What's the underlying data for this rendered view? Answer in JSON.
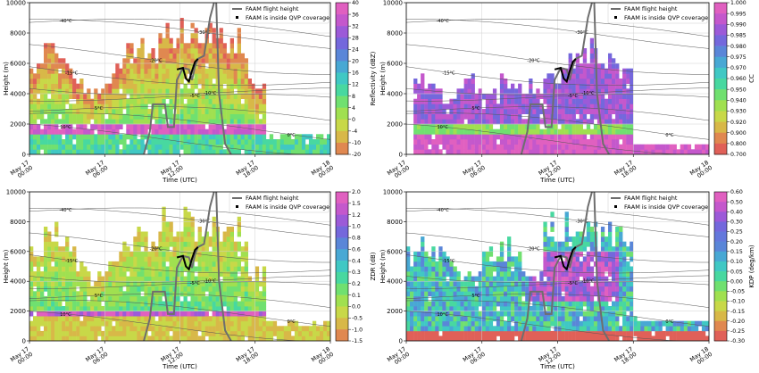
{
  "chart_data": [
    {
      "type": "heatmap",
      "variable": "reflectivity",
      "colorbar_label": "Reflectivity (dBZ)",
      "colorbar_ticks": [
        "40",
        "36",
        "32",
        "28",
        "24",
        "20",
        "16",
        "12",
        "8",
        "4",
        "0",
        "-4",
        "-10",
        "-20"
      ],
      "colorbar_colors": [
        "#e060c0",
        "#c458cc",
        "#9c5ad8",
        "#7468dc",
        "#5a86d8",
        "#48a8d4",
        "#40c8c4",
        "#48d8a0",
        "#70e070",
        "#a0e050",
        "#c8d848",
        "#d8b848",
        "#e08850",
        "#e06058"
      ],
      "ylabel": "Height (m)",
      "xlabel": "Time (UTC)",
      "yticks": [
        "0",
        "2000",
        "4000",
        "6000",
        "8000",
        "10000"
      ],
      "xticks": [
        "May 17\n00:00",
        "May 17\n06:00",
        "May 17\n12:00",
        "May 17\n18:00",
        "May 18\n00:00"
      ],
      "legend": [
        "FAAM flight height",
        "FAAM is inside QVP coverage"
      ],
      "isotherms": [
        "-40°C",
        "-30°C",
        "-20°C",
        "-15°C",
        "-10°C",
        "-5°C",
        "5°C",
        "0°C",
        "10°C"
      ]
    },
    {
      "type": "heatmap",
      "variable": "cc",
      "colorbar_label": "CC",
      "colorbar_ticks": [
        "1.000",
        "0.995",
        "0.990",
        "0.985",
        "0.980",
        "0.975",
        "0.970",
        "0.960",
        "0.950",
        "0.940",
        "0.930",
        "0.920",
        "0.900",
        "0.800",
        "0.700"
      ],
      "colorbar_colors": [
        "#e060c0",
        "#c458cc",
        "#9c5ad8",
        "#7468dc",
        "#5a86d8",
        "#48a8d4",
        "#40c8c4",
        "#48d8a0",
        "#70e070",
        "#a0e050",
        "#c8d848",
        "#d8b848",
        "#e08850",
        "#e06058"
      ],
      "ylabel": "Height (m)",
      "xlabel": "Time (UTC)",
      "yticks": [
        "0",
        "2000",
        "4000",
        "6000",
        "8000",
        "10000"
      ],
      "xticks": [
        "May 17\n00:00",
        "May 17\n06:00",
        "May 17\n12:00",
        "May 17\n18:00",
        "May 18\n00:00"
      ],
      "legend": [
        "FAAM flight height",
        "FAAM is inside QVP coverage"
      ],
      "isotherms": [
        "-40°C",
        "-30°C",
        "-20°C",
        "-15°C",
        "-10°C",
        "-5°C",
        "5°C",
        "0°C",
        "10°C"
      ]
    },
    {
      "type": "heatmap",
      "variable": "zdr",
      "colorbar_label": "ZDR (dB)",
      "colorbar_ticks": [
        "2.0",
        "1.5",
        "1.2",
        "1.0",
        "0.8",
        "0.6",
        "0.4",
        "0.3",
        "0.2",
        "0.1",
        "0.0",
        "-0.5",
        "-1.0",
        "-1.5"
      ],
      "colorbar_colors": [
        "#e060c0",
        "#c458cc",
        "#9c5ad8",
        "#7468dc",
        "#5a86d8",
        "#48a8d4",
        "#40c8c4",
        "#48d8a0",
        "#70e070",
        "#a0e050",
        "#c8d848",
        "#d8b848",
        "#e08850",
        "#e06058"
      ],
      "ylabel": "Height (m)",
      "xlabel": "Time (UTC)",
      "yticks": [
        "0",
        "2000",
        "4000",
        "6000",
        "8000",
        "10000"
      ],
      "xticks": [
        "May 17\n00:00",
        "May 17\n06:00",
        "May 17\n12:00",
        "May 17\n18:00",
        "May 18\n00:00"
      ],
      "legend": [
        "FAAM flight height",
        "FAAM is inside QVP coverage"
      ],
      "isotherms": [
        "-40°C",
        "-30°C",
        "-20°C",
        "-15°C",
        "-10°C",
        "-5°C",
        "5°C",
        "0°C",
        "10°C"
      ]
    },
    {
      "type": "heatmap",
      "variable": "kdp",
      "colorbar_label": "KDP (deg/km)",
      "colorbar_ticks": [
        "0.60",
        "0.50",
        "0.40",
        "0.30",
        "0.25",
        "0.20",
        "0.15",
        "0.10",
        "0.05",
        "0.00",
        "-0.05",
        "-0.10",
        "-0.15",
        "-0.20",
        "-0.25",
        "-0.30"
      ],
      "colorbar_colors": [
        "#e060c0",
        "#c458cc",
        "#9c5ad8",
        "#7468dc",
        "#6478dc",
        "#5a86d8",
        "#48a8d4",
        "#40c8c4",
        "#48d8a0",
        "#70e070",
        "#a0e050",
        "#c8d848",
        "#d8b848",
        "#e08850",
        "#e06058"
      ],
      "ylabel": "Height (m)",
      "xlabel": "Time (UTC)",
      "yticks": [
        "0",
        "2000",
        "4000",
        "6000",
        "8000",
        "10000"
      ],
      "xticks": [
        "May 17\n00:00",
        "May 17\n06:00",
        "May 17\n12:00",
        "May 17\n18:00",
        "May 18\n00:00"
      ],
      "legend": [
        "FAAM flight height",
        "FAAM is inside QVP coverage"
      ],
      "isotherms": [
        "-40°C",
        "-30°C",
        "-20°C",
        "-15°C",
        "-10°C",
        "-5°C",
        "5°C",
        "0°C",
        "10°C"
      ]
    }
  ]
}
